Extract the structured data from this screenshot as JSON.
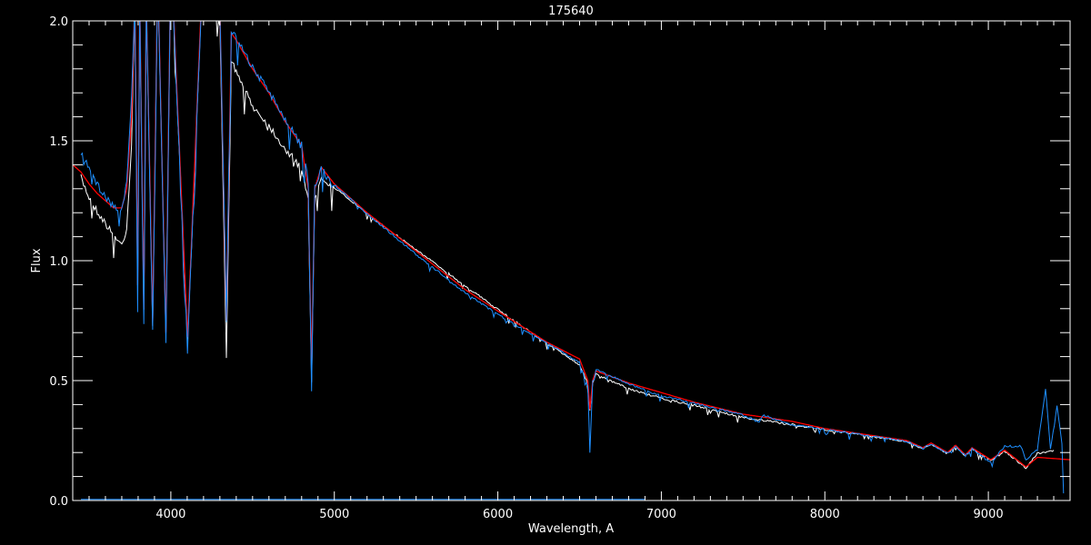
{
  "chart_data": {
    "type": "line",
    "title": "175640",
    "xlabel": "Wavelength, A",
    "ylabel": "Flux",
    "xlim": [
      3400,
      9500
    ],
    "ylim": [
      0.0,
      2.0
    ],
    "x_ticks": [
      4000,
      5000,
      6000,
      7000,
      8000,
      9000
    ],
    "x_tick_labels": [
      "4000",
      "5000",
      "6000",
      "7000",
      "8000",
      "9000"
    ],
    "y_ticks": [
      0.0,
      0.5,
      1.0,
      1.5,
      2.0
    ],
    "y_tick_labels": [
      "0.0",
      "0.5",
      "1.0",
      "1.5",
      "2.0"
    ],
    "grid": false,
    "background": "#000000",
    "series": [
      {
        "color": "#ffffff",
        "points": [
          [
            3450,
            1.36
          ],
          [
            3500,
            1.28
          ],
          [
            3550,
            1.22
          ],
          [
            3600,
            1.17
          ],
          [
            3650,
            1.12
          ],
          [
            3700,
            1.08
          ],
          [
            3730,
            1.15
          ],
          [
            3760,
            1.5
          ],
          [
            3780,
            2.1
          ],
          [
            3797,
            0.9
          ],
          [
            3810,
            2.1
          ],
          [
            3835,
            0.8
          ],
          [
            3850,
            2.1
          ],
          [
            3889,
            0.75
          ],
          [
            3920,
            2.2
          ],
          [
            3970,
            0.7
          ],
          [
            4000,
            2.3
          ],
          [
            4102,
            0.68
          ],
          [
            4200,
            2.3
          ],
          [
            4300,
            2.0
          ],
          [
            4340,
            0.6
          ],
          [
            4370,
            1.85
          ],
          [
            4400,
            1.8
          ],
          [
            4500,
            1.66
          ],
          [
            4600,
            1.58
          ],
          [
            4700,
            1.48
          ],
          [
            4800,
            1.4
          ],
          [
            4840,
            1.28
          ],
          [
            4861,
            0.5
          ],
          [
            4880,
            1.28
          ],
          [
            4920,
            1.37
          ],
          [
            5000,
            1.31
          ],
          [
            5200,
            1.2
          ],
          [
            5500,
            1.05
          ],
          [
            5800,
            0.9
          ],
          [
            6000,
            0.8
          ],
          [
            6300,
            0.66
          ],
          [
            6500,
            0.57
          ],
          [
            6550,
            0.49
          ],
          [
            6563,
            0.38
          ],
          [
            6580,
            0.49
          ],
          [
            6600,
            0.53
          ],
          [
            6800,
            0.47
          ],
          [
            7000,
            0.43
          ],
          [
            7200,
            0.4
          ],
          [
            7500,
            0.35
          ],
          [
            7800,
            0.32
          ],
          [
            8000,
            0.3
          ],
          [
            8300,
            0.27
          ],
          [
            8500,
            0.25
          ],
          [
            8600,
            0.22
          ],
          [
            8650,
            0.24
          ],
          [
            8750,
            0.2
          ],
          [
            8800,
            0.23
          ],
          [
            8860,
            0.19
          ],
          [
            8900,
            0.22
          ],
          [
            9015,
            0.17
          ],
          [
            9100,
            0.21
          ],
          [
            9230,
            0.14
          ],
          [
            9300,
            0.2
          ],
          [
            9400,
            0.21
          ]
        ]
      },
      {
        "color": "#ff0000",
        "points": [
          [
            3400,
            1.4
          ],
          [
            3450,
            1.37
          ],
          [
            3500,
            1.32
          ],
          [
            3550,
            1.28
          ],
          [
            3600,
            1.25
          ],
          [
            3650,
            1.22
          ],
          [
            3700,
            1.22
          ],
          [
            3730,
            1.3
          ],
          [
            3760,
            1.6
          ],
          [
            3780,
            2.1
          ],
          [
            3797,
            0.9
          ],
          [
            3810,
            2.1
          ],
          [
            3835,
            0.8
          ],
          [
            3850,
            2.1
          ],
          [
            3889,
            0.75
          ],
          [
            3920,
            2.2
          ],
          [
            3970,
            0.7
          ],
          [
            4000,
            2.3
          ],
          [
            4102,
            0.68
          ],
          [
            4200,
            2.3
          ],
          [
            4300,
            2.05
          ],
          [
            4340,
            0.75
          ],
          [
            4370,
            1.95
          ],
          [
            4400,
            1.92
          ],
          [
            4500,
            1.8
          ],
          [
            4600,
            1.7
          ],
          [
            4700,
            1.58
          ],
          [
            4800,
            1.48
          ],
          [
            4840,
            1.3
          ],
          [
            4861,
            0.55
          ],
          [
            4880,
            1.3
          ],
          [
            4920,
            1.39
          ],
          [
            5000,
            1.32
          ],
          [
            5200,
            1.2
          ],
          [
            5500,
            1.04
          ],
          [
            5800,
            0.88
          ],
          [
            6000,
            0.79
          ],
          [
            6300,
            0.66
          ],
          [
            6500,
            0.59
          ],
          [
            6550,
            0.5
          ],
          [
            6563,
            0.38
          ],
          [
            6580,
            0.5
          ],
          [
            6600,
            0.54
          ],
          [
            6800,
            0.49
          ],
          [
            7000,
            0.45
          ],
          [
            7200,
            0.41
          ],
          [
            7500,
            0.36
          ],
          [
            7800,
            0.33
          ],
          [
            8000,
            0.3
          ],
          [
            8300,
            0.27
          ],
          [
            8500,
            0.25
          ],
          [
            8600,
            0.22
          ],
          [
            8650,
            0.24
          ],
          [
            8750,
            0.2
          ],
          [
            8800,
            0.23
          ],
          [
            8860,
            0.19
          ],
          [
            8900,
            0.22
          ],
          [
            9015,
            0.17
          ],
          [
            9100,
            0.21
          ],
          [
            9230,
            0.14
          ],
          [
            9300,
            0.18
          ],
          [
            9500,
            0.17
          ]
        ]
      },
      {
        "color": "#1e8fff",
        "points": [
          [
            3450,
            1.47
          ],
          [
            3500,
            1.4
          ],
          [
            3550,
            1.33
          ],
          [
            3600,
            1.28
          ],
          [
            3650,
            1.24
          ],
          [
            3700,
            1.22
          ],
          [
            3730,
            1.35
          ],
          [
            3760,
            1.7
          ],
          [
            3780,
            2.1
          ],
          [
            3797,
            0.8
          ],
          [
            3810,
            2.1
          ],
          [
            3835,
            0.75
          ],
          [
            3850,
            2.1
          ],
          [
            3889,
            0.72
          ],
          [
            3920,
            2.2
          ],
          [
            3970,
            0.68
          ],
          [
            4000,
            2.3
          ],
          [
            4102,
            0.65
          ],
          [
            4200,
            2.3
          ],
          [
            4300,
            2.05
          ],
          [
            4340,
            0.8
          ],
          [
            4370,
            1.98
          ],
          [
            4400,
            1.94
          ],
          [
            4500,
            1.82
          ],
          [
            4600,
            1.72
          ],
          [
            4700,
            1.6
          ],
          [
            4800,
            1.5
          ],
          [
            4840,
            1.35
          ],
          [
            4861,
            0.48
          ],
          [
            4880,
            1.32
          ],
          [
            4920,
            1.4
          ],
          [
            5000,
            1.32
          ],
          [
            5200,
            1.2
          ],
          [
            5500,
            1.03
          ],
          [
            5800,
            0.87
          ],
          [
            6000,
            0.78
          ],
          [
            6300,
            0.66
          ],
          [
            6500,
            0.58
          ],
          [
            6550,
            0.48
          ],
          [
            6563,
            0.2
          ],
          [
            6580,
            0.5
          ],
          [
            6600,
            0.55
          ],
          [
            6800,
            0.49
          ],
          [
            7000,
            0.44
          ],
          [
            7200,
            0.41
          ],
          [
            7500,
            0.36
          ],
          [
            7600,
            0.33
          ],
          [
            7620,
            0.36
          ],
          [
            7800,
            0.32
          ],
          [
            8000,
            0.3
          ],
          [
            8300,
            0.27
          ],
          [
            8500,
            0.25
          ],
          [
            8600,
            0.22
          ],
          [
            8650,
            0.24
          ],
          [
            8750,
            0.2
          ],
          [
            8800,
            0.23
          ],
          [
            8860,
            0.19
          ],
          [
            8900,
            0.22
          ],
          [
            9015,
            0.16
          ],
          [
            9100,
            0.23
          ],
          [
            9200,
            0.23
          ],
          [
            9230,
            0.17
          ],
          [
            9300,
            0.22
          ],
          [
            9350,
            0.47
          ],
          [
            9380,
            0.22
          ],
          [
            9420,
            0.4
          ],
          [
            9450,
            0.24
          ],
          [
            9460,
            0.03
          ]
        ]
      },
      {
        "color": "#1e8fff",
        "points": [
          [
            3450,
            0.005
          ],
          [
            6900,
            0.005
          ]
        ]
      }
    ]
  }
}
